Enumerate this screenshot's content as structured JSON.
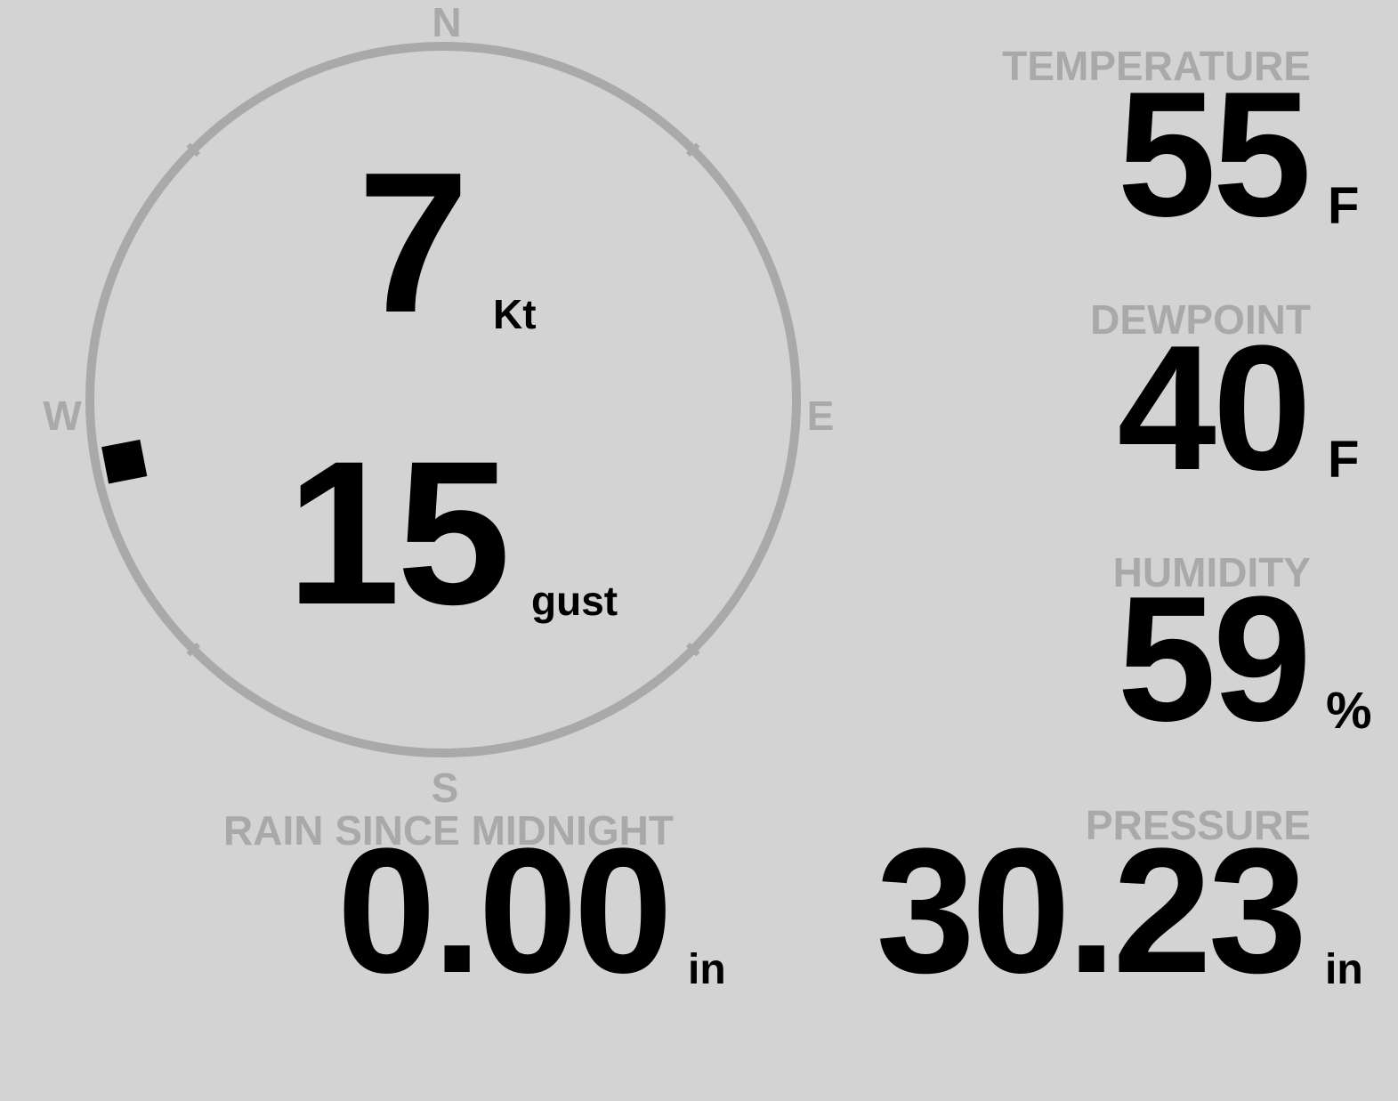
{
  "compass": {
    "labels": {
      "north": "N",
      "east": "E",
      "south": "S",
      "west": "W"
    },
    "wind_direction_deg": 259,
    "ring_color": "#a9a9a9",
    "marker_color": "#000000"
  },
  "wind": {
    "speed": "7",
    "speed_unit": "Kt",
    "gust": "15",
    "gust_unit": "gust"
  },
  "temperature": {
    "label": "TEMPERATURE",
    "value": "55",
    "unit": "F"
  },
  "dewpoint": {
    "label": "DEWPOINT",
    "value": "40",
    "unit": "F"
  },
  "humidity": {
    "label": "HUMIDITY",
    "value": "59",
    "unit": "%"
  },
  "rain": {
    "label": "RAIN SINCE MIDNIGHT",
    "value": "0.00",
    "unit": "in"
  },
  "pressure": {
    "label": "PRESSURE",
    "value": "30.23",
    "unit": "in"
  },
  "colors": {
    "background": "#d3d3d3",
    "label": "#a9a9a9",
    "value": "#000000"
  }
}
